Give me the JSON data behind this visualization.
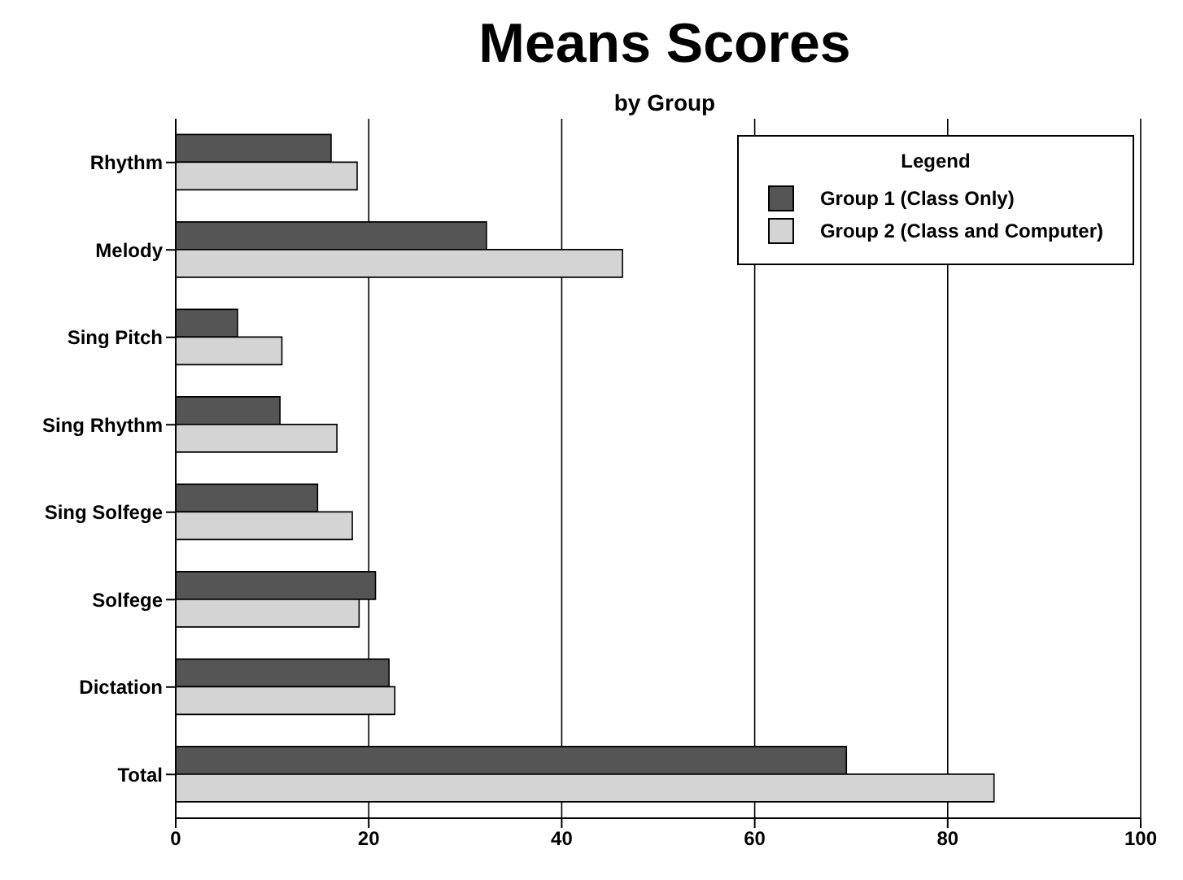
{
  "chart_data": {
    "type": "bar",
    "title": "Means Scores",
    "subtitle": "by Group",
    "orientation": "horizontal",
    "legend_title": "Legend",
    "legend": "top right",
    "grid": "x",
    "categories": [
      "Rhythm",
      "Melody",
      "Sing Pitch",
      "Sing Rhythm",
      "Sing Solfege",
      "Solfege",
      "Dictation",
      "Total"
    ],
    "series": [
      {
        "name": "Group 1 (Class Only)",
        "color": "#555555",
        "values": [
          16.1,
          32.2,
          6.4,
          10.8,
          14.7,
          20.7,
          22.1,
          69.5
        ]
      },
      {
        "name": "Group 2 (Class and Computer)",
        "color": "#d4d4d4",
        "values": [
          18.8,
          46.3,
          11.0,
          16.7,
          18.3,
          19.0,
          22.7,
          84.8
        ]
      }
    ],
    "xlim": [
      0,
      100
    ],
    "xticks": [
      0,
      20,
      40,
      60,
      80,
      100
    ]
  }
}
